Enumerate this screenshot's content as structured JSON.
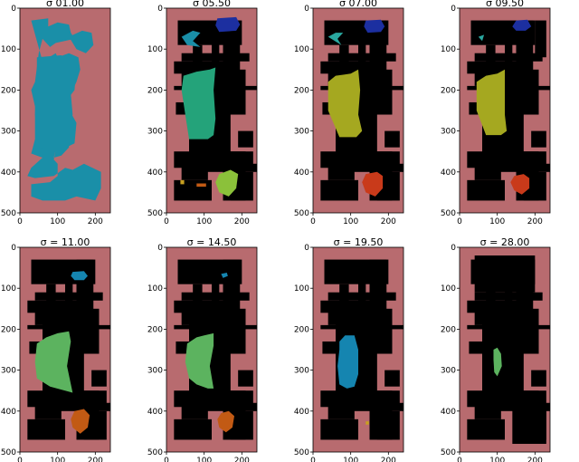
{
  "chart_data": [
    {
      "type": "heatmap",
      "title": "σ    01.00",
      "xlim": [
        0,
        240
      ],
      "ylim": [
        500,
        0
      ],
      "xticks": [
        0,
        100,
        200
      ],
      "yticks": [
        0,
        100,
        200,
        300,
        400,
        500
      ]
    },
    {
      "type": "heatmap",
      "title": "σ    05.50",
      "xlim": [
        0,
        240
      ],
      "ylim": [
        500,
        0
      ],
      "xticks": [
        0,
        100,
        200
      ],
      "yticks": [
        0,
        100,
        200,
        300,
        400,
        500
      ]
    },
    {
      "type": "heatmap",
      "title": "σ    07.00",
      "xlim": [
        0,
        240
      ],
      "ylim": [
        500,
        0
      ],
      "xticks": [
        0,
        100,
        200
      ],
      "yticks": [
        0,
        100,
        200,
        300,
        400,
        500
      ]
    },
    {
      "type": "heatmap",
      "title": "σ    09.50",
      "xlim": [
        0,
        240
      ],
      "ylim": [
        500,
        0
      ],
      "xticks": [
        0,
        100,
        200
      ],
      "yticks": [
        0,
        100,
        200,
        300,
        400,
        500
      ]
    },
    {
      "type": "heatmap",
      "title": "σ = 11.00",
      "xlim": [
        0,
        240
      ],
      "ylim": [
        500,
        0
      ],
      "xticks": [
        0,
        100,
        200
      ],
      "yticks": [
        0,
        100,
        200,
        300,
        400,
        500
      ]
    },
    {
      "type": "heatmap",
      "title": "σ = 14.50",
      "xlim": [
        0,
        240
      ],
      "ylim": [
        500,
        0
      ],
      "xticks": [
        0,
        100,
        200
      ],
      "yticks": [
        0,
        100,
        200,
        300,
        400,
        500
      ]
    },
    {
      "type": "heatmap",
      "title": "σ = 19.50",
      "xlim": [
        0,
        240
      ],
      "ylim": [
        500,
        0
      ],
      "xticks": [
        0,
        100,
        200
      ],
      "yticks": [
        0,
        100,
        200,
        300,
        400,
        500
      ]
    },
    {
      "type": "heatmap",
      "title": "σ = 28.00",
      "xlim": [
        0,
        240
      ],
      "ylim": [
        500,
        0
      ],
      "xticks": [
        0,
        100,
        200
      ],
      "yticks": [
        0,
        100,
        200,
        300,
        400,
        500
      ]
    }
  ],
  "colors": {
    "background": "#b86b6f",
    "wall": "#000000",
    "teal": "#1a8fa8",
    "navy": "#1c2fa0",
    "cyan": "#2aa8a0",
    "jade": "#24a37a",
    "olive": "#a5a820",
    "green": "#5cb35f",
    "lime": "#8bc13a",
    "orange": "#c25a14",
    "red": "#c93a1a",
    "blue": "#1585b0",
    "gold": "#c8a020",
    "amber": "#c48820"
  }
}
